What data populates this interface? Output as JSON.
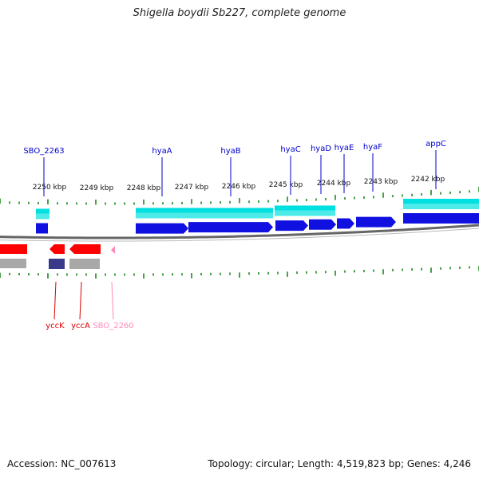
{
  "title": "Shigella boydii Sb227, complete genome",
  "footer": {
    "accession": "Accession: NC_007613",
    "summary": "Topology: circular; Length: 4,519,823 bp; Genes: 4,246"
  },
  "colors": {
    "forward_gene": "#1010e0",
    "forward_cds": "#00e0e0",
    "reverse_gene": "#ff0000",
    "reverse_dark": "#3a3a8a",
    "reverse_grey": "#a8a8a8",
    "pink": "#ff88bb",
    "tick": "#1a8a1a",
    "backbone": "#666666",
    "label_blue": "#0000cc",
    "label_red": "#dd0000"
  },
  "scale_labels": [
    "2250 kbp",
    "2249 kbp",
    "2248 kbp",
    "2247 kbp",
    "2246 kbp",
    "2245 kbp",
    "2244 kbp",
    "2243 kbp",
    "2242 kbp"
  ],
  "top_genes": [
    "SBO_2263",
    "hyaA",
    "hyaB",
    "hyaC",
    "hyaD",
    "hyaE",
    "hyaF",
    "appC"
  ],
  "bottom_genes": [
    "yccK",
    "yccA",
    "SBO_2260"
  ]
}
